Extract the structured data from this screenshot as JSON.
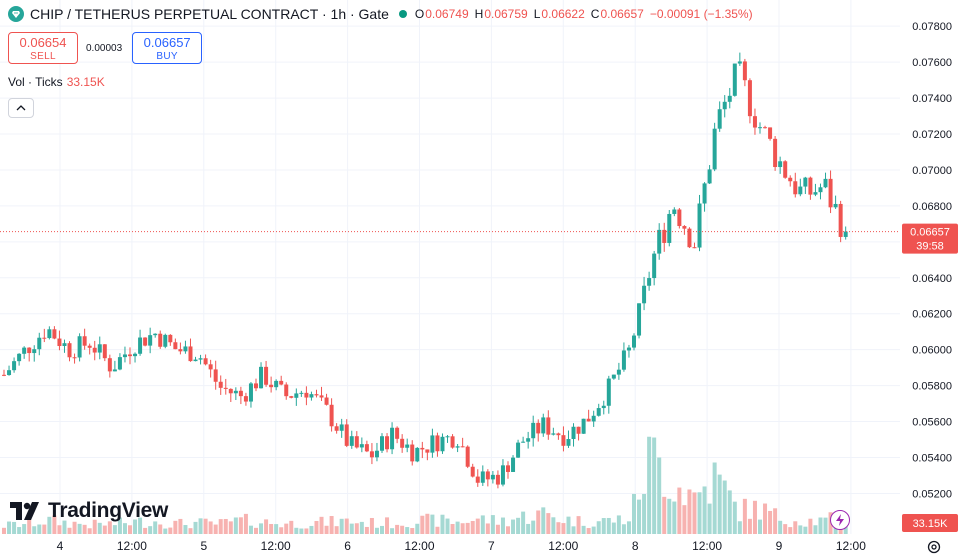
{
  "header": {
    "title": "CHIP / TETHERUS PERPETUAL CONTRACT · 1h · Gate",
    "ohlc": [
      {
        "key": "O",
        "value": "0.06749"
      },
      {
        "key": "H",
        "value": "0.06759"
      },
      {
        "key": "L",
        "value": "0.06622"
      },
      {
        "key": "C",
        "value": "0.06657"
      }
    ],
    "change": "−0.00091 (−1.35%)"
  },
  "trade": {
    "sell_price": "0.06654",
    "sell_label": "SELL",
    "spread": "0.00003",
    "buy_price": "0.06657",
    "buy_label": "BUY"
  },
  "volume_legend": {
    "label": "Vol · Ticks",
    "value": "33.15K"
  },
  "branding": {
    "name": "TradingView"
  },
  "colors": {
    "up": "#26a69a",
    "down": "#ef5350",
    "up_vol": "#a5d9d3",
    "down_vol": "#f7b2b0",
    "grid": "#f0f3fa",
    "accent": "#2962ff"
  },
  "chart_data": {
    "type": "candlestick",
    "timeframe": "1h",
    "y_ticks": [
      "0.07800",
      "0.07600",
      "0.07400",
      "0.07200",
      "0.07000",
      "0.06800",
      "0.06600",
      "0.06400",
      "0.06200",
      "0.06000",
      "0.05800",
      "0.05600",
      "0.05400",
      "0.05200"
    ],
    "y_range": [
      0.0503,
      0.0789
    ],
    "x_ticks": [
      "4",
      "12:00",
      "5",
      "12:00",
      "6",
      "12:00",
      "7",
      "12:00",
      "8",
      "12:00",
      "9",
      "12:00"
    ],
    "last_price": "0.06657",
    "countdown": "39:58",
    "last_volume": "33.15K",
    "anchors": [
      {
        "value": 0.0586,
        "vol": 1.0
      },
      {
        "value": 0.06,
        "vol": 1.2
      },
      {
        "value": 0.0612,
        "vol": 1.6
      },
      {
        "value": 0.06,
        "vol": 1.3
      },
      {
        "value": 0.0604,
        "vol": 1.1
      },
      {
        "value": 0.059,
        "vol": 1.2
      },
      {
        "value": 0.0603,
        "vol": 1.4
      },
      {
        "value": 0.0609,
        "vol": 1.5
      },
      {
        "value": 0.06,
        "vol": 1.2
      },
      {
        "value": 0.0598,
        "vol": 1.3
      },
      {
        "value": 0.0579,
        "vol": 1.2
      },
      {
        "value": 0.0574,
        "vol": 1.6
      },
      {
        "value": 0.0586,
        "vol": 1.4
      },
      {
        "value": 0.0574,
        "vol": 1.2
      },
      {
        "value": 0.0578,
        "vol": 1.3
      },
      {
        "value": 0.0565,
        "vol": 1.4
      },
      {
        "value": 0.0547,
        "vol": 1.5
      },
      {
        "value": 0.0541,
        "vol": 1.3
      },
      {
        "value": 0.0553,
        "vol": 1.3
      },
      {
        "value": 0.0543,
        "vol": 1.5
      },
      {
        "value": 0.0549,
        "vol": 1.6
      },
      {
        "value": 0.0552,
        "vol": 1.4
      },
      {
        "value": 0.0527,
        "vol": 1.8
      },
      {
        "value": 0.053,
        "vol": 1.5
      },
      {
        "value": 0.0549,
        "vol": 2.0
      },
      {
        "value": 0.0558,
        "vol": 2.4
      },
      {
        "value": 0.0552,
        "vol": 1.7
      },
      {
        "value": 0.0561,
        "vol": 1.4
      },
      {
        "value": 0.0578,
        "vol": 1.6
      },
      {
        "value": 0.06,
        "vol": 1.8
      },
      {
        "value": 0.0648,
        "vol": 9.4
      },
      {
        "value": 0.0682,
        "vol": 6.0
      },
      {
        "value": 0.066,
        "vol": 4.4
      },
      {
        "value": 0.0725,
        "vol": 6.6
      },
      {
        "value": 0.0754,
        "vol": 2.8
      },
      {
        "value": 0.0725,
        "vol": 3.0
      },
      {
        "value": 0.0703,
        "vol": 1.8
      },
      {
        "value": 0.0686,
        "vol": 1.6
      },
      {
        "value": 0.0691,
        "vol": 1.5
      },
      {
        "value": 0.0666,
        "vol": 2.2
      }
    ]
  }
}
